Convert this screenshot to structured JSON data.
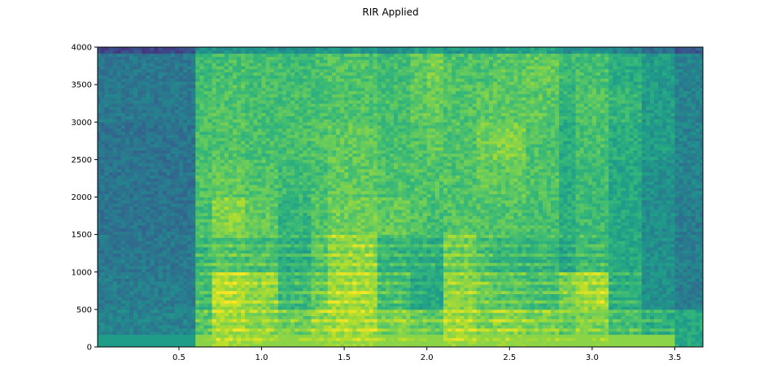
{
  "chart_data": {
    "type": "heatmap",
    "title": "RIR Applied",
    "xlabel": "",
    "ylabel": "",
    "xlim": [
      0.008,
      3.67
    ],
    "ylim": [
      0,
      4000
    ],
    "xticks": [
      "0.5",
      "1.0",
      "1.5",
      "2.0",
      "2.5",
      "3.0",
      "3.5"
    ],
    "xtick_values": [
      0.5,
      1.0,
      1.5,
      2.0,
      2.5,
      3.0,
      3.5
    ],
    "yticks": [
      "0",
      "500",
      "1000",
      "1500",
      "2000",
      "2500",
      "3000",
      "3500",
      "4000"
    ],
    "ytick_values": [
      0,
      500,
      1000,
      1500,
      2000,
      2500,
      3000,
      3500,
      4000
    ],
    "colormap": "viridis",
    "time_bin_width": 0.1,
    "freq_bands": [
      [
        0,
        500
      ],
      [
        500,
        1000
      ],
      [
        1000,
        1500
      ],
      [
        1500,
        2000
      ],
      [
        2000,
        2500
      ],
      [
        2500,
        3000
      ],
      [
        3000,
        3500
      ],
      [
        3500,
        4000
      ]
    ],
    "intensity_note_scale": [
      0,
      1
    ],
    "z_columns": [
      [
        0.45,
        0.42,
        0.4,
        0.38,
        0.38,
        0.38,
        0.4,
        0.4
      ],
      [
        0.45,
        0.42,
        0.4,
        0.38,
        0.38,
        0.38,
        0.4,
        0.4
      ],
      [
        0.45,
        0.42,
        0.4,
        0.38,
        0.38,
        0.38,
        0.4,
        0.4
      ],
      [
        0.45,
        0.42,
        0.4,
        0.38,
        0.38,
        0.38,
        0.4,
        0.4
      ],
      [
        0.45,
        0.42,
        0.4,
        0.38,
        0.38,
        0.38,
        0.4,
        0.4
      ],
      [
        0.45,
        0.42,
        0.4,
        0.38,
        0.38,
        0.38,
        0.4,
        0.4
      ],
      [
        0.75,
        0.7,
        0.68,
        0.7,
        0.72,
        0.7,
        0.7,
        0.68
      ],
      [
        0.88,
        0.9,
        0.75,
        0.82,
        0.75,
        0.72,
        0.72,
        0.7
      ],
      [
        0.88,
        0.9,
        0.75,
        0.82,
        0.75,
        0.72,
        0.72,
        0.7
      ],
      [
        0.85,
        0.85,
        0.72,
        0.75,
        0.72,
        0.7,
        0.7,
        0.7
      ],
      [
        0.85,
        0.85,
        0.72,
        0.75,
        0.72,
        0.7,
        0.7,
        0.7
      ],
      [
        0.8,
        0.7,
        0.65,
        0.65,
        0.68,
        0.7,
        0.7,
        0.68
      ],
      [
        0.8,
        0.7,
        0.65,
        0.65,
        0.68,
        0.7,
        0.7,
        0.68
      ],
      [
        0.85,
        0.78,
        0.75,
        0.72,
        0.7,
        0.72,
        0.7,
        0.7
      ],
      [
        0.88,
        0.88,
        0.85,
        0.78,
        0.75,
        0.75,
        0.72,
        0.72
      ],
      [
        0.88,
        0.88,
        0.85,
        0.78,
        0.75,
        0.75,
        0.72,
        0.72
      ],
      [
        0.88,
        0.88,
        0.85,
        0.78,
        0.75,
        0.75,
        0.72,
        0.72
      ],
      [
        0.82,
        0.72,
        0.68,
        0.75,
        0.72,
        0.7,
        0.7,
        0.68
      ],
      [
        0.82,
        0.72,
        0.68,
        0.75,
        0.72,
        0.7,
        0.7,
        0.68
      ],
      [
        0.78,
        0.62,
        0.65,
        0.72,
        0.72,
        0.72,
        0.74,
        0.74
      ],
      [
        0.75,
        0.6,
        0.65,
        0.7,
        0.72,
        0.75,
        0.76,
        0.78
      ],
      [
        0.88,
        0.85,
        0.8,
        0.72,
        0.72,
        0.72,
        0.72,
        0.72
      ],
      [
        0.88,
        0.85,
        0.8,
        0.72,
        0.72,
        0.72,
        0.72,
        0.72
      ],
      [
        0.82,
        0.78,
        0.72,
        0.72,
        0.75,
        0.78,
        0.75,
        0.72
      ],
      [
        0.85,
        0.75,
        0.68,
        0.72,
        0.75,
        0.8,
        0.74,
        0.74
      ],
      [
        0.85,
        0.75,
        0.68,
        0.72,
        0.75,
        0.8,
        0.74,
        0.74
      ],
      [
        0.82,
        0.72,
        0.68,
        0.7,
        0.72,
        0.72,
        0.74,
        0.76
      ],
      [
        0.82,
        0.72,
        0.68,
        0.7,
        0.72,
        0.72,
        0.74,
        0.76
      ],
      [
        0.78,
        0.8,
        0.62,
        0.62,
        0.62,
        0.62,
        0.65,
        0.68
      ],
      [
        0.82,
        0.88,
        0.7,
        0.68,
        0.68,
        0.7,
        0.72,
        0.7
      ],
      [
        0.82,
        0.88,
        0.7,
        0.68,
        0.68,
        0.7,
        0.72,
        0.7
      ],
      [
        0.72,
        0.65,
        0.6,
        0.6,
        0.6,
        0.62,
        0.65,
        0.62
      ],
      [
        0.72,
        0.65,
        0.6,
        0.6,
        0.6,
        0.62,
        0.65,
        0.62
      ],
      [
        0.65,
        0.5,
        0.5,
        0.5,
        0.5,
        0.55,
        0.55,
        0.55
      ],
      [
        0.65,
        0.5,
        0.5,
        0.5,
        0.5,
        0.55,
        0.55,
        0.55
      ],
      [
        0.6,
        0.42,
        0.42,
        0.42,
        0.45,
        0.45,
        0.45,
        0.45
      ],
      [
        0.6,
        0.42,
        0.42,
        0.42,
        0.45,
        0.45,
        0.45,
        0.45
      ]
    ]
  }
}
